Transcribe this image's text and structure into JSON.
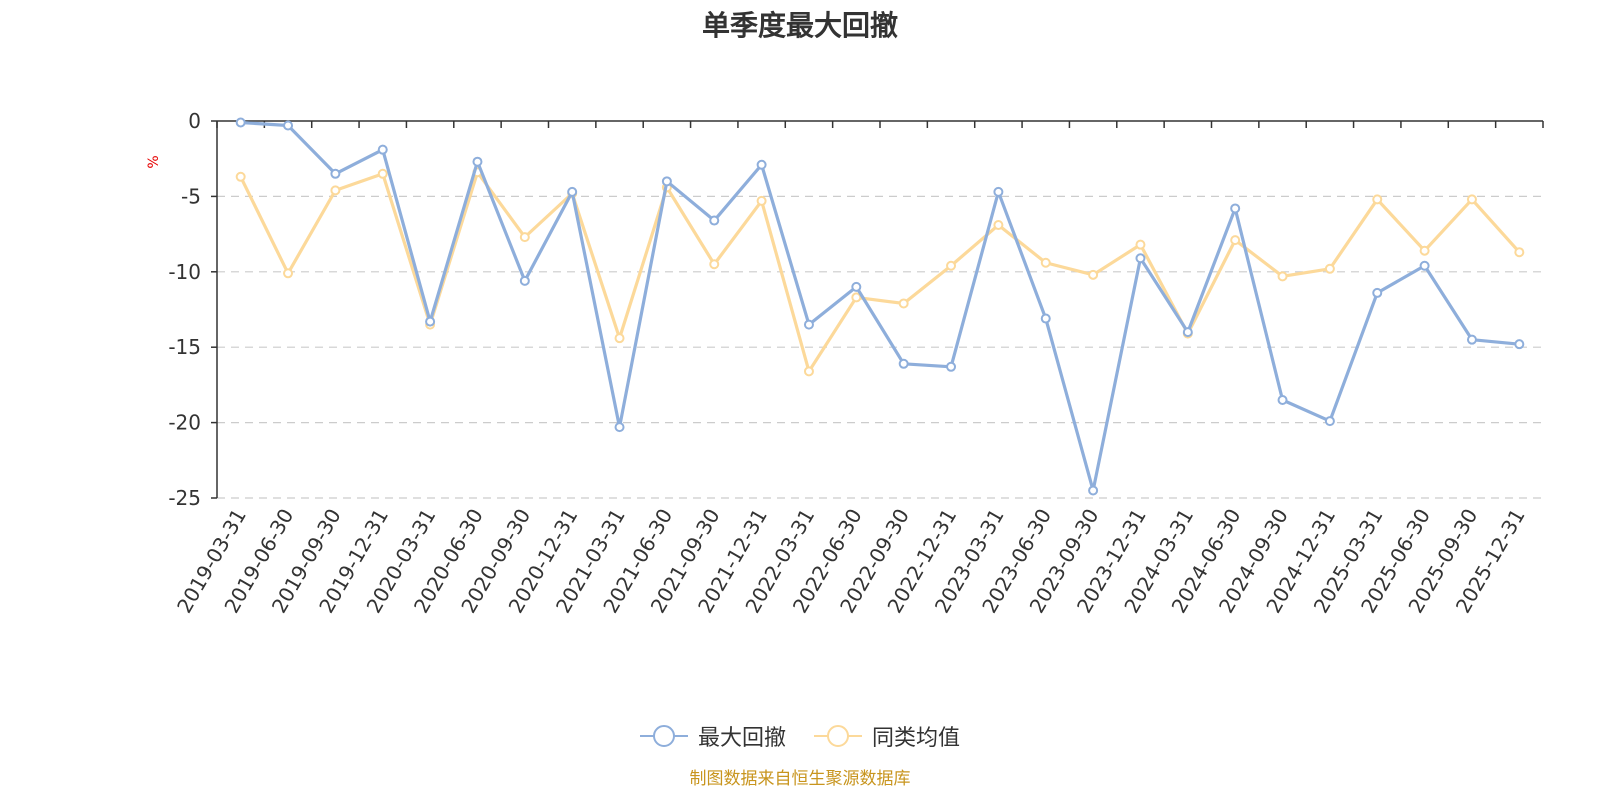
{
  "title": "单季度最大回撤",
  "unit": "%",
  "source": "制图数据来自恒生聚源数据库",
  "colors": {
    "series_max_drawdown": "#8eaedb",
    "series_peer_avg": "#fcd99a",
    "axis": "#333333",
    "grid": "#cccccc",
    "unit": "#e60000",
    "source": "#c8951e"
  },
  "legend": {
    "items": [
      {
        "label": "最大回撤",
        "icon": "circle-line-icon"
      },
      {
        "label": "同类均值",
        "icon": "circle-line-icon"
      }
    ]
  },
  "chart_data": {
    "type": "line",
    "title": "单季度最大回撤",
    "ylabel": "%",
    "xlabel": "",
    "ylim": [
      -25,
      0
    ],
    "yticks": [
      0,
      -5,
      -10,
      -15,
      -20,
      -25
    ],
    "grid": true,
    "legend_position": "bottom",
    "categories": [
      "2019-03-31",
      "2019-06-30",
      "2019-09-30",
      "2019-12-31",
      "2020-03-31",
      "2020-06-30",
      "2020-09-30",
      "2020-12-31",
      "2021-03-31",
      "2021-06-30",
      "2021-09-30",
      "2021-12-31",
      "2022-03-31",
      "2022-06-30",
      "2022-09-30",
      "2022-12-31",
      "2023-03-31",
      "2023-06-30",
      "2023-09-30",
      "2023-12-31",
      "2024-03-31",
      "2024-06-30",
      "2024-09-30",
      "2024-12-31",
      "2025-03-31",
      "2025-06-30",
      "2025-09-30",
      "2025-12-31"
    ],
    "series": [
      {
        "name": "最大回撤",
        "values": [
          -0.1,
          -0.3,
          -3.5,
          -1.9,
          -13.3,
          -2.7,
          -10.6,
          -4.7,
          -20.3,
          -4.0,
          -6.6,
          -2.9,
          -13.5,
          -11.0,
          -16.1,
          -16.3,
          -4.7,
          -13.1,
          -24.5,
          -9.1,
          -14.0,
          -5.8,
          -18.5,
          -19.9,
          -11.4,
          -9.6,
          -14.5,
          -14.8
        ]
      },
      {
        "name": "同类均值",
        "values": [
          -3.7,
          -10.1,
          -4.6,
          -3.5,
          -13.5,
          -3.4,
          -7.7,
          -4.8,
          -14.4,
          -4.4,
          -9.5,
          -5.3,
          -16.6,
          -11.7,
          -12.1,
          -9.6,
          -6.9,
          -9.4,
          -10.2,
          -8.2,
          -14.1,
          -7.9,
          -10.3,
          -9.8,
          -5.2,
          -8.6,
          -5.2,
          -8.7
        ]
      }
    ]
  }
}
